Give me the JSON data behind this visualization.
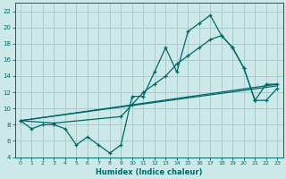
{
  "title": "",
  "xlabel": "Humidex (Indice chaleur)",
  "bg_color": "#cce8e8",
  "grid_color": "#aacccc",
  "line_color": "#006868",
  "xlim": [
    -0.5,
    23.5
  ],
  "ylim": [
    4,
    23
  ],
  "yticks": [
    4,
    6,
    8,
    10,
    12,
    14,
    16,
    18,
    20,
    22
  ],
  "xticks": [
    0,
    1,
    2,
    3,
    4,
    5,
    6,
    7,
    8,
    9,
    10,
    11,
    12,
    13,
    14,
    15,
    16,
    17,
    18,
    19,
    20,
    21,
    22,
    23
  ],
  "series1_x": [
    0,
    1,
    2,
    3,
    4,
    5,
    6,
    7,
    8,
    9,
    10,
    11,
    12,
    13,
    14,
    15,
    16,
    17,
    18,
    19,
    20,
    21,
    22,
    23
  ],
  "series1_y": [
    8.5,
    7.5,
    8.0,
    8.0,
    7.5,
    5.5,
    6.5,
    5.5,
    4.5,
    5.5,
    11.5,
    11.5,
    14.5,
    17.5,
    14.5,
    19.5,
    20.5,
    21.5,
    19.0,
    17.5,
    15.0,
    11.0,
    13.0,
    13.0
  ],
  "series2_x": [
    0,
    23
  ],
  "series2_y": [
    8.5,
    12.8
  ],
  "series3_x": [
    0,
    3,
    9,
    10,
    11,
    12,
    13,
    14,
    15,
    16,
    17,
    18,
    19,
    20,
    21,
    22,
    23
  ],
  "series3_y": [
    8.5,
    8.2,
    9.0,
    10.5,
    12.0,
    13.0,
    14.0,
    15.5,
    16.5,
    17.5,
    18.5,
    19.0,
    17.5,
    15.0,
    11.0,
    11.0,
    12.5
  ],
  "series4_x": [
    0,
    23
  ],
  "series4_y": [
    8.5,
    13.0
  ]
}
